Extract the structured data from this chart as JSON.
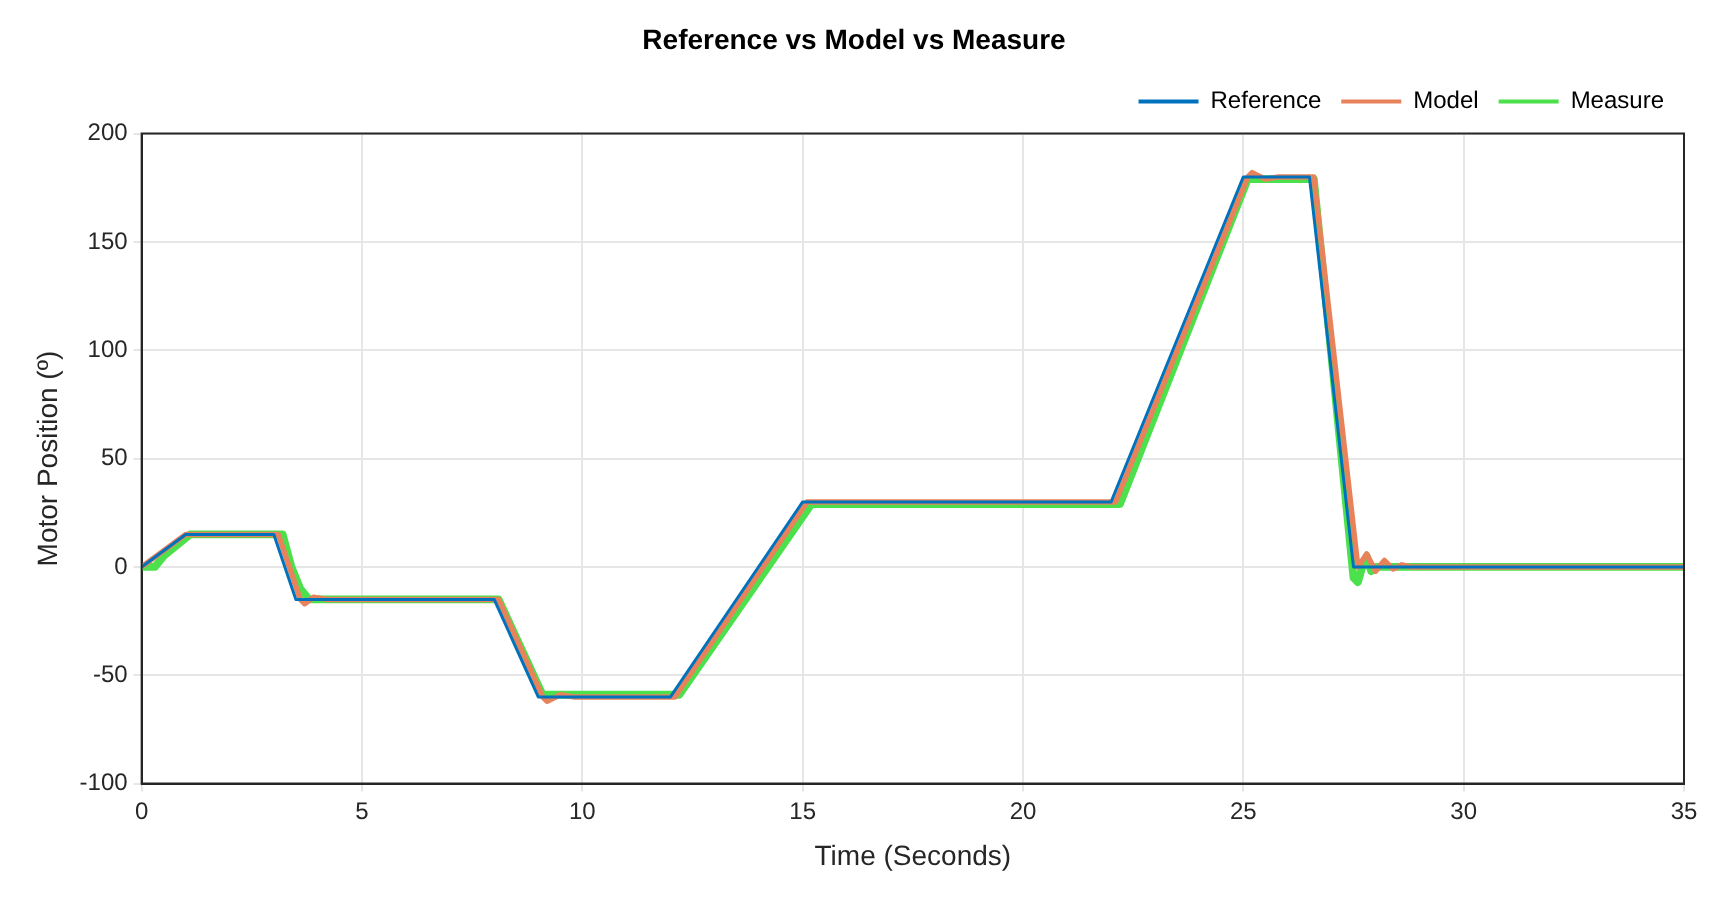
{
  "chart_data": {
    "type": "line",
    "title": "Reference vs Model vs Measure",
    "xlabel": "Time (Seconds)",
    "ylabel": "Motor Position (º)",
    "xlim": [
      0,
      35
    ],
    "ylim": [
      -100,
      200
    ],
    "xticks": [
      0,
      5,
      10,
      15,
      20,
      25,
      30,
      35
    ],
    "yticks": [
      -100,
      -50,
      0,
      50,
      100,
      150,
      200
    ],
    "grid": true,
    "legend": "top right",
    "marker": "none",
    "line_style": "solid",
    "series": [
      {
        "name": "Reference",
        "color": "#0072bd",
        "x": [
          0,
          1,
          3,
          3.5,
          8,
          9,
          12,
          15,
          22,
          25,
          26.5,
          27.5,
          35
        ],
        "values": [
          0,
          15,
          15,
          -15,
          -15,
          -60,
          -60,
          30,
          30,
          180,
          180,
          0,
          0
        ]
      },
      {
        "name": "Model",
        "color": "#e8825a",
        "x": [
          0,
          1,
          3.1,
          3.6,
          3.7,
          3.9,
          4.2,
          8.1,
          9.1,
          9.2,
          9.5,
          9.8,
          12.1,
          15.1,
          22.1,
          25.1,
          25.2,
          25.5,
          25.8,
          26.6,
          27.6,
          27.8,
          28,
          28.2,
          28.4,
          28.6,
          28.8,
          35
        ],
        "values": [
          0,
          15,
          15,
          -15,
          -17,
          -14,
          -15,
          -15,
          -60,
          -62,
          -59,
          -60,
          -60,
          30,
          30,
          180,
          182,
          179,
          180,
          180,
          0,
          6,
          -2,
          3,
          -1,
          1,
          0,
          0
        ]
      },
      {
        "name": "Measure",
        "color": "#4de04d",
        "x": [
          0,
          0.3,
          0.5,
          0.8,
          1.1,
          3.2,
          3.4,
          3.6,
          3.8,
          8.1,
          9.1,
          12.2,
          15.2,
          22.2,
          25.1,
          26.6,
          27.5,
          27.6,
          27.7,
          27.8,
          27.9,
          28,
          35
        ],
        "values": [
          0,
          0,
          5,
          10,
          15,
          15,
          0,
          -10,
          -15,
          -15,
          -59,
          -59,
          29,
          29,
          179,
          179,
          -5,
          -7,
          0,
          5,
          -2,
          0,
          0
        ]
      }
    ]
  }
}
